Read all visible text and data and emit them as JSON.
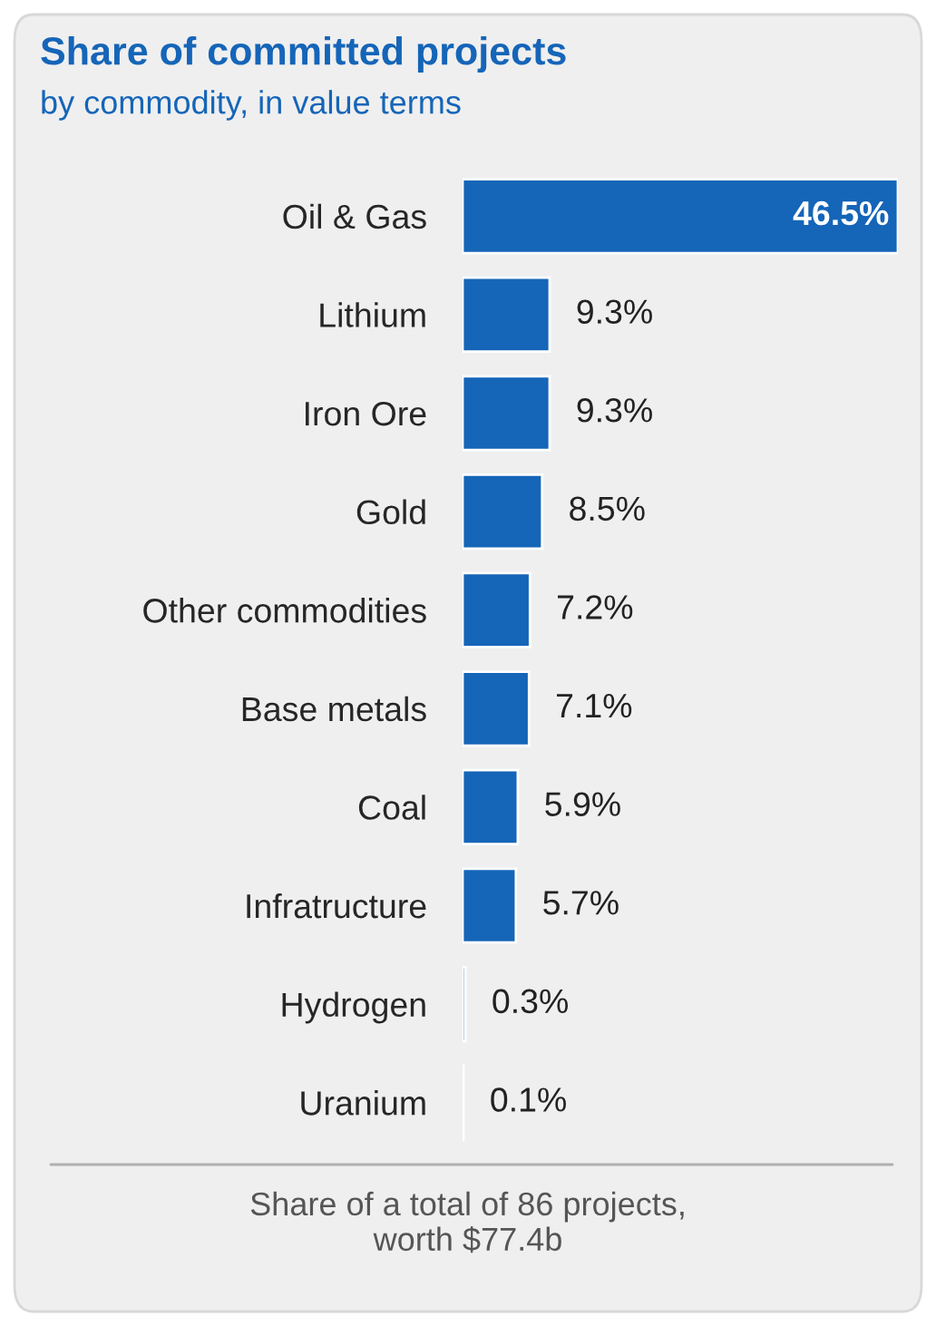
{
  "chart_data": {
    "type": "bar",
    "orientation": "horizontal",
    "title": "Share of committed projects",
    "subtitle": "by commodity, in value terms",
    "categories": [
      "Oil & Gas",
      "Lithium",
      "Iron Ore",
      "Gold",
      "Other commodities",
      "Base metals",
      "Coal",
      "Infratructure",
      "Hydrogen",
      "Uranium"
    ],
    "values": [
      46.5,
      9.3,
      9.3,
      8.5,
      7.2,
      7.1,
      5.9,
      5.7,
      0.3,
      0.1
    ],
    "value_labels": [
      "46.5%",
      "9.3%",
      "9.3%",
      "8.5%",
      "7.2%",
      "7.1%",
      "5.9%",
      "5.7%",
      "0.3%",
      "0.1%"
    ],
    "color": "#1565b8",
    "annotations": [
      "Share of a total of 86 projects,\nworth $77.4b"
    ]
  }
}
